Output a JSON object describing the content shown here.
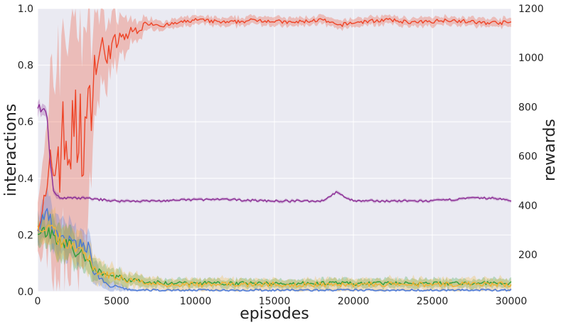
{
  "chart_data": {
    "type": "line",
    "xlabel": "episodes",
    "ylabel_left": "interactions",
    "ylabel_right": "rewards",
    "xlim": [
      0,
      30000
    ],
    "ylim_left": [
      0,
      1
    ],
    "ylim_right": [
      50,
      1200
    ],
    "x_ticks": [
      "0",
      "5000",
      "10000",
      "15000",
      "20000",
      "25000",
      "30000"
    ],
    "y_ticks_left": [
      "0.0",
      "0.2",
      "0.4",
      "0.6",
      "0.8",
      "1.0"
    ],
    "y_ticks_right": [
      "200",
      "400",
      "600",
      "800",
      "1000",
      "1200"
    ],
    "grid": true,
    "colors": {
      "background": "#eaeaf2",
      "grid": "#ffffff",
      "red": "#ee4427",
      "purple": "#8b2d96",
      "blue": "#4a78d6",
      "green": "#2f9e3a",
      "orange": "#f2b233"
    },
    "series": [
      {
        "color_key": "red",
        "axis": "left",
        "x": [
          0,
          500,
          1000,
          1500,
          2000,
          2500,
          3000,
          3300,
          3500,
          4000,
          4500,
          5000,
          5500,
          6000,
          6500,
          7000,
          8000,
          9000,
          10000,
          12000,
          14000,
          16000,
          18000,
          19000,
          20000,
          22000,
          24000,
          26000,
          28000,
          30000
        ],
        "y": [
          0.25,
          0.3,
          0.45,
          0.52,
          0.53,
          0.55,
          0.57,
          0.6,
          0.78,
          0.85,
          0.85,
          0.88,
          0.9,
          0.92,
          0.93,
          0.95,
          0.94,
          0.95,
          0.96,
          0.95,
          0.96,
          0.95,
          0.96,
          0.94,
          0.95,
          0.96,
          0.95,
          0.96,
          0.95,
          0.95
        ],
        "band": [
          0.08,
          0.2,
          0.35,
          0.4,
          0.42,
          0.42,
          0.4,
          0.35,
          0.2,
          0.14,
          0.1,
          0.08,
          0.06,
          0.04,
          0.03,
          0.02,
          0.015,
          0.015,
          0.015,
          0.015,
          0.015,
          0.015,
          0.015,
          0.015,
          0.015,
          0.015,
          0.015,
          0.015,
          0.015,
          0.015
        ]
      },
      {
        "color_key": "purple",
        "axis": "left",
        "x": [
          0,
          200,
          400,
          600,
          800,
          1000,
          1200,
          1500,
          2000,
          3000,
          4000,
          5000,
          7500,
          10000,
          12000,
          15000,
          18000,
          18900,
          20000,
          22000,
          25000,
          27500,
          29000,
          30000
        ],
        "y": [
          0.66,
          0.64,
          0.64,
          0.62,
          0.45,
          0.36,
          0.34,
          0.33,
          0.33,
          0.33,
          0.325,
          0.32,
          0.32,
          0.325,
          0.325,
          0.32,
          0.32,
          0.35,
          0.32,
          0.32,
          0.32,
          0.33,
          0.33,
          0.32
        ],
        "band": [
          0.03,
          0.02,
          0.02,
          0.02,
          0.02,
          0.01,
          0.01,
          0.005,
          0.005,
          0.005,
          0.005,
          0.005,
          0.005,
          0.005,
          0.005,
          0.005,
          0.005,
          0.005,
          0.005,
          0.005,
          0.005,
          0.005,
          0.005,
          0.005
        ]
      },
      {
        "color_key": "blue",
        "axis": "left",
        "x": [
          0,
          500,
          800,
          1000,
          1500,
          2000,
          2500,
          3000,
          3300,
          3500,
          4000,
          4500,
          5000,
          5500,
          6000,
          7000,
          8000,
          10000,
          15000,
          20000,
          25000,
          30000
        ],
        "y": [
          0.22,
          0.28,
          0.28,
          0.2,
          0.19,
          0.17,
          0.17,
          0.16,
          0.16,
          0.08,
          0.04,
          0.02,
          0.015,
          0.01,
          0.005,
          0.005,
          0.005,
          0.005,
          0.005,
          0.005,
          0.005,
          0.005
        ],
        "band": [
          0.06,
          0.07,
          0.07,
          0.06,
          0.06,
          0.06,
          0.05,
          0.05,
          0.05,
          0.04,
          0.03,
          0.02,
          0.015,
          0.01,
          0.005,
          0.004,
          0.004,
          0.004,
          0.004,
          0.004,
          0.004,
          0.004
        ]
      },
      {
        "color_key": "green",
        "axis": "left",
        "x": [
          0,
          500,
          1000,
          1500,
          2000,
          2500,
          3000,
          3300,
          3500,
          4000,
          5000,
          6000,
          7000,
          8000,
          10000,
          12000,
          15000,
          18000,
          20000,
          22000,
          25000,
          27500,
          30000
        ],
        "y": [
          0.22,
          0.21,
          0.2,
          0.17,
          0.16,
          0.14,
          0.12,
          0.12,
          0.08,
          0.07,
          0.05,
          0.04,
          0.035,
          0.03,
          0.03,
          0.03,
          0.028,
          0.03,
          0.028,
          0.03,
          0.028,
          0.03,
          0.03
        ],
        "band": [
          0.04,
          0.05,
          0.06,
          0.06,
          0.06,
          0.05,
          0.05,
          0.04,
          0.04,
          0.03,
          0.025,
          0.02,
          0.015,
          0.015,
          0.015,
          0.015,
          0.015,
          0.015,
          0.015,
          0.015,
          0.015,
          0.015,
          0.015
        ]
      },
      {
        "color_key": "orange",
        "axis": "left",
        "x": [
          0,
          500,
          1000,
          1500,
          2000,
          2500,
          3000,
          3300,
          3500,
          4000,
          5000,
          6000,
          7000,
          8000,
          10000,
          12000,
          15000,
          18000,
          20000,
          22000,
          25000,
          27500,
          30000
        ],
        "y": [
          0.23,
          0.22,
          0.21,
          0.18,
          0.17,
          0.15,
          0.13,
          0.12,
          0.09,
          0.07,
          0.05,
          0.04,
          0.03,
          0.025,
          0.025,
          0.025,
          0.025,
          0.025,
          0.025,
          0.025,
          0.025,
          0.025,
          0.025
        ],
        "band": [
          0.04,
          0.05,
          0.06,
          0.06,
          0.06,
          0.06,
          0.06,
          0.05,
          0.05,
          0.04,
          0.03,
          0.025,
          0.02,
          0.02,
          0.02,
          0.02,
          0.02,
          0.02,
          0.02,
          0.02,
          0.02,
          0.02,
          0.02
        ]
      }
    ]
  }
}
